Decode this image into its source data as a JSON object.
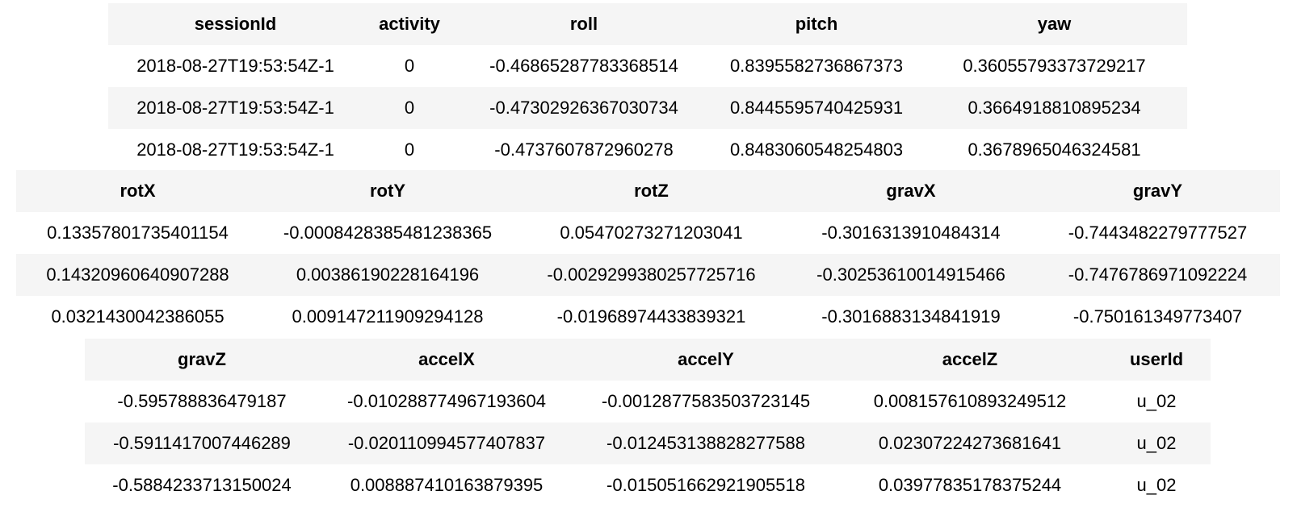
{
  "tables": [
    {
      "headers": [
        "sessionId",
        "activity",
        "roll",
        "pitch",
        "yaw"
      ],
      "rows": [
        [
          "2018-08-27T19:53:54Z-1",
          "0",
          "-0.46865287783368514",
          "0.8395582736867373",
          "0.36055793373729217"
        ],
        [
          "2018-08-27T19:53:54Z-1",
          "0",
          "-0.47302926367030734",
          "0.8445595740425931",
          "0.3664918810895234"
        ],
        [
          "2018-08-27T19:53:54Z-1",
          "0",
          "-0.4737607872960278",
          "0.8483060548254803",
          "0.3678965046324581"
        ]
      ]
    },
    {
      "headers": [
        "rotX",
        "rotY",
        "rotZ",
        "gravX",
        "gravY"
      ],
      "rows": [
        [
          "0.13357801735401154",
          "-0.0008428385481238365",
          "0.05470273271203041",
          "-0.3016313910484314",
          "-0.7443482279777527"
        ],
        [
          "0.14320960640907288",
          "0.00386190228164196",
          "-0.0029299380257725716",
          "-0.30253610014915466",
          "-0.7476786971092224"
        ],
        [
          "0.0321430042386055",
          "0.009147211909294128",
          "-0.01968974433839321",
          "-0.3016883134841919",
          "-0.750161349773407"
        ]
      ]
    },
    {
      "headers": [
        "gravZ",
        "accelX",
        "accelY",
        "accelZ",
        "userId"
      ],
      "rows": [
        [
          "-0.595788836479187",
          "-0.010288774967193604",
          "-0.0012877583503723145",
          "0.008157610893249512",
          "u_02"
        ],
        [
          "-0.5911417007446289",
          "-0.020110994577407837",
          "-0.012453138828277588",
          "0.02307224273681641",
          "u_02"
        ],
        [
          "-0.5884233713150024",
          "0.008887410163879395",
          "-0.015051662921905518",
          "0.03977835178375244",
          "u_02"
        ]
      ]
    }
  ]
}
